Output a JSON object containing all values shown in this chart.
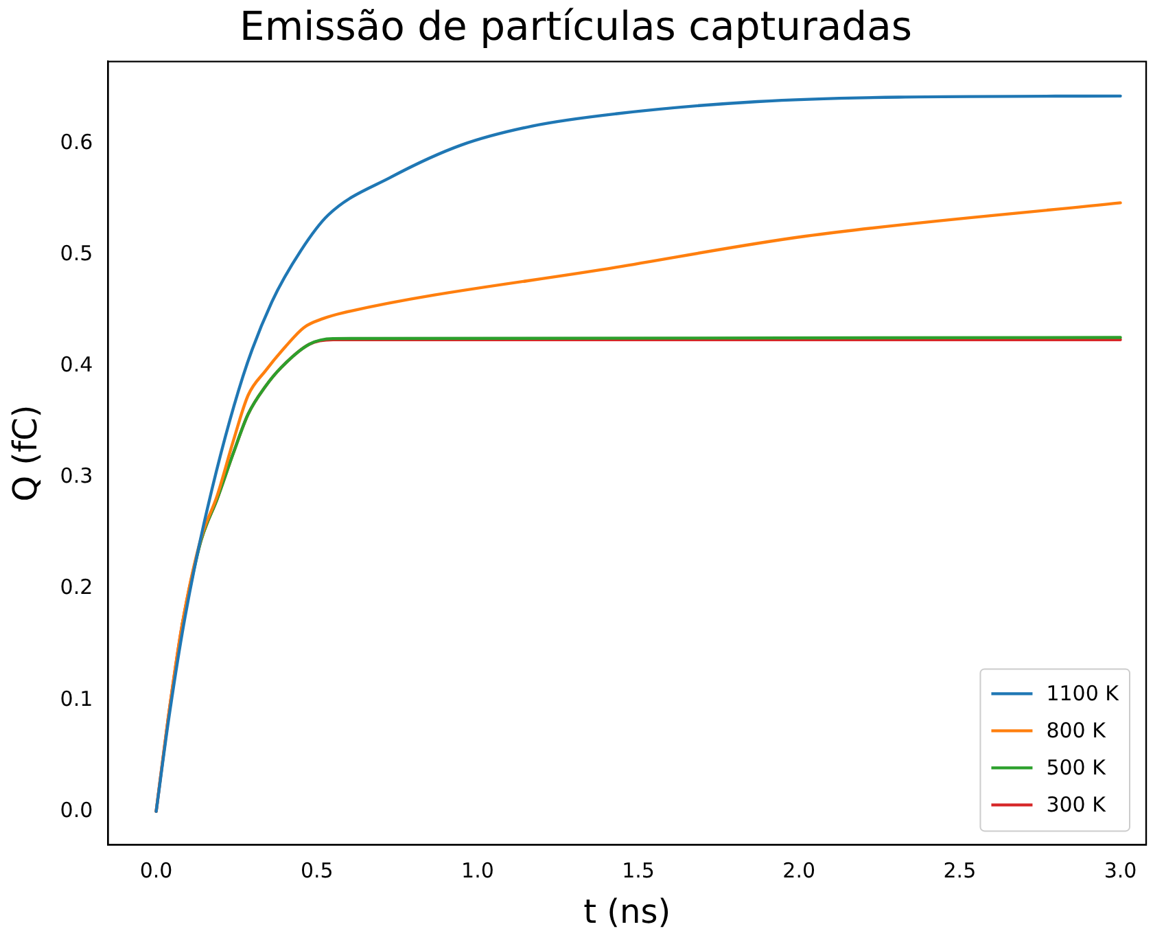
{
  "chart_data": {
    "type": "line",
    "title": "Emissão de partículas capturadas",
    "xlabel": "t (ns)",
    "ylabel": "Q (fC)",
    "xlim": [
      -0.15,
      3.08
    ],
    "ylim": [
      -0.03,
      0.674
    ],
    "xticks": [
      {
        "value": 0,
        "label": "0.0"
      },
      {
        "value": 0.5,
        "label": "0.5"
      },
      {
        "value": 1,
        "label": "1.0"
      },
      {
        "value": 1.5,
        "label": "1.5"
      },
      {
        "value": 2,
        "label": "2.0"
      },
      {
        "value": 2.5,
        "label": "2.5"
      },
      {
        "value": 3,
        "label": "3.0"
      }
    ],
    "yticks": [
      {
        "value": 0,
        "label": "0.0"
      },
      {
        "value": 0.1,
        "label": "0.1"
      },
      {
        "value": 0.2,
        "label": "0.2"
      },
      {
        "value": 0.3,
        "label": "0.3"
      },
      {
        "value": 0.4,
        "label": "0.4"
      },
      {
        "value": 0.5,
        "label": "0.5"
      },
      {
        "value": 0.6,
        "label": "0.6"
      }
    ],
    "grid": false,
    "legend": "bottom right",
    "marker": "none",
    "line_style": "solid",
    "series": [
      {
        "name": "1100 K",
        "color": "#1f77b4",
        "x": [
          0,
          0.04,
          0.09,
          0.16,
          0.27,
          0.36,
          0.45,
          0.535,
          0.73,
          0.95,
          1.17,
          1.43,
          1.87,
          2.31,
          3.0
        ],
        "values": [
          0,
          0.085,
          0.175,
          0.273,
          0.391,
          0.458,
          0.504,
          0.536,
          0.57,
          0.599,
          0.616,
          0.627,
          0.638,
          0.642,
          0.643
        ]
      },
      {
        "name": "800 K",
        "color": "#ff7f0e",
        "x": [
          0,
          0.037,
          0.081,
          0.139,
          0.19,
          0.24,
          0.286,
          0.34,
          0.403,
          0.46,
          0.52,
          0.579,
          1.43,
          2.02,
          3.0
        ],
        "values": [
          0,
          0.083,
          0.168,
          0.245,
          0.284,
          0.333,
          0.374,
          0.396,
          0.418,
          0.435,
          0.443,
          0.448,
          0.489,
          0.517,
          0.547
        ]
      },
      {
        "name": "500 K",
        "color": "#2ca02c",
        "x": [
          0.081,
          0.139,
          0.19,
          0.24,
          0.286,
          0.34,
          0.389,
          0.477,
          0.55,
          3.0
        ],
        "values": [
          0.168,
          0.243,
          0.281,
          0.322,
          0.357,
          0.382,
          0.399,
          0.42,
          0.425,
          0.426
        ]
      },
      {
        "name": "300 K",
        "color": "#d62728",
        "x": [
          0,
          0.037,
          0.081,
          0.139,
          0.19,
          0.24,
          0.286,
          0.34,
          0.389,
          0.477,
          0.55,
          3.0
        ],
        "values": [
          0,
          0.083,
          0.168,
          0.243,
          0.281,
          0.322,
          0.357,
          0.382,
          0.399,
          0.42,
          0.424,
          0.424
        ]
      }
    ]
  }
}
